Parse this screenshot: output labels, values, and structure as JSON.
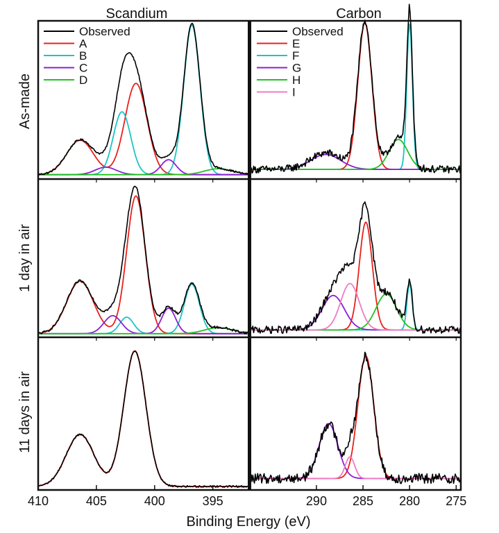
{
  "chart_data": {
    "type": "line",
    "title": "",
    "xlabel": "Binding Energy (eV)",
    "ylabel": "",
    "columns": [
      {
        "title": "Scandium",
        "xlim": [
          410,
          392
        ],
        "ticks": [
          410,
          405,
          400,
          395
        ],
        "tick_labels": [
          "410",
          "405",
          "400",
          "395"
        ]
      },
      {
        "title": "Carbon",
        "xlim": [
          297,
          274.5
        ],
        "ticks": [
          290,
          285,
          280,
          275
        ],
        "tick_labels": [
          "290",
          "285",
          "280",
          "275"
        ]
      }
    ],
    "rows": [
      {
        "label": "As-made"
      },
      {
        "label": "1 day in air"
      },
      {
        "label": "11 days in air"
      }
    ],
    "legends": [
      {
        "column": 0,
        "position": "top-left",
        "entries": [
          {
            "name": "Observed",
            "color": "#000000"
          },
          {
            "name": "A",
            "color": "#e8201c"
          },
          {
            "name": "B",
            "color": "#1ec3c3"
          },
          {
            "name": "C",
            "color": "#8a1fd6"
          },
          {
            "name": "D",
            "color": "#22c11f"
          }
        ]
      },
      {
        "column": 1,
        "position": "top-left",
        "entries": [
          {
            "name": "Observed",
            "color": "#000000"
          },
          {
            "name": "E",
            "color": "#e8201c"
          },
          {
            "name": "F",
            "color": "#1ec3c3"
          },
          {
            "name": "G",
            "color": "#8a1fd6"
          },
          {
            "name": "H",
            "color": "#22c11f"
          },
          {
            "name": "I",
            "color": "#f07ac4"
          }
        ]
      }
    ],
    "panels": [
      {
        "row": 0,
        "col": 0,
        "baseline": 0.02,
        "noise": 0.006,
        "observed_extra": 0.005,
        "ymax": 1.02,
        "components": [
          {
            "name": "A",
            "color": "#e8201c",
            "peaks": [
              [
                401.6,
                0.61,
                0.95
              ],
              [
                406.4,
                0.23,
                1.15
              ]
            ]
          },
          {
            "name": "B",
            "color": "#1ec3c3",
            "peaks": [
              [
                396.8,
                1.0,
                0.7
              ],
              [
                402.8,
                0.42,
                0.75
              ]
            ]
          },
          {
            "name": "C",
            "color": "#8a1fd6",
            "peaks": [
              [
                398.8,
                0.1,
                0.65
              ],
              [
                404.2,
                0.05,
                0.9
              ]
            ]
          },
          {
            "name": "D",
            "color": "#22c11f",
            "peaks": [
              [
                394.5,
                0.04,
                1.2
              ]
            ]
          }
        ]
      },
      {
        "row": 0,
        "col": 1,
        "baseline": 0.055,
        "noise": 0.025,
        "observed_extra": 0.015,
        "ymax": 1.02,
        "components": [
          {
            "name": "E",
            "color": "#e8201c",
            "peaks": [
              [
                284.8,
                0.98,
                0.75
              ]
            ]
          },
          {
            "name": "F",
            "color": "#1ec3c3",
            "peaks": [
              [
                280.0,
                0.98,
                0.3
              ]
            ]
          },
          {
            "name": "G",
            "color": "#8a1fd6",
            "peaks": [
              [
                289.0,
                0.1,
                1.6
              ]
            ]
          },
          {
            "name": "H",
            "color": "#22c11f",
            "peaks": [
              [
                281.2,
                0.2,
                1.0
              ]
            ]
          }
        ]
      },
      {
        "row": 1,
        "col": 0,
        "baseline": 0.015,
        "noise": 0.008,
        "observed_extra": 0.01,
        "ymax": 1.02,
        "components": [
          {
            "name": "A",
            "color": "#e8201c",
            "peaks": [
              [
                401.6,
                0.92,
                0.8
              ],
              [
                406.4,
                0.35,
                1.15
              ]
            ]
          },
          {
            "name": "B",
            "color": "#1ec3c3",
            "peaks": [
              [
                396.8,
                0.33,
                0.65
              ],
              [
                402.4,
                0.11,
                0.6
              ]
            ]
          },
          {
            "name": "C",
            "color": "#8a1fd6",
            "peaks": [
              [
                398.8,
                0.17,
                0.6
              ],
              [
                403.6,
                0.12,
                0.75
              ]
            ]
          },
          {
            "name": "D",
            "color": "#22c11f",
            "peaks": [
              [
                394.5,
                0.04,
                1.2
              ]
            ]
          }
        ]
      },
      {
        "row": 1,
        "col": 1,
        "baseline": 0.04,
        "noise": 0.025,
        "observed_extra": 0.015,
        "ymax": 1.02,
        "components": [
          {
            "name": "E",
            "color": "#e8201c",
            "peaks": [
              [
                284.7,
                0.72,
                0.7
              ]
            ]
          },
          {
            "name": "F",
            "color": "#1ec3c3",
            "peaks": [
              [
                280.0,
                0.31,
                0.28
              ]
            ]
          },
          {
            "name": "G",
            "color": "#8a1fd6",
            "peaks": [
              [
                288.2,
                0.23,
                1.2
              ]
            ]
          },
          {
            "name": "H",
            "color": "#22c11f",
            "peaks": [
              [
                282.5,
                0.24,
                1.1
              ]
            ]
          },
          {
            "name": "I",
            "color": "#f07ac4",
            "peaks": [
              [
                286.4,
                0.31,
                1.0
              ]
            ]
          }
        ]
      },
      {
        "row": 2,
        "col": 0,
        "baseline": 0.015,
        "noise": 0.006,
        "observed_extra": 0.0,
        "ymax": 1.02,
        "components": [
          {
            "name": "A",
            "color": "#e8201c",
            "peaks": [
              [
                401.7,
                0.94,
                0.95
              ],
              [
                406.4,
                0.36,
                1.2
              ]
            ]
          }
        ]
      },
      {
        "row": 2,
        "col": 1,
        "baseline": 0.07,
        "noise": 0.035,
        "observed_extra": 0.0,
        "ymax": 1.02,
        "components": [
          {
            "name": "E",
            "color": "#e8201c",
            "peaks": [
              [
                284.7,
                0.85,
                0.85
              ]
            ]
          },
          {
            "name": "G",
            "color": "#8a1fd6",
            "peaks": [
              [
                288.7,
                0.38,
                1.0
              ]
            ]
          },
          {
            "name": "I",
            "color": "#f07ac4",
            "peaks": [
              [
                286.4,
                0.15,
                0.5
              ]
            ]
          }
        ]
      }
    ]
  }
}
